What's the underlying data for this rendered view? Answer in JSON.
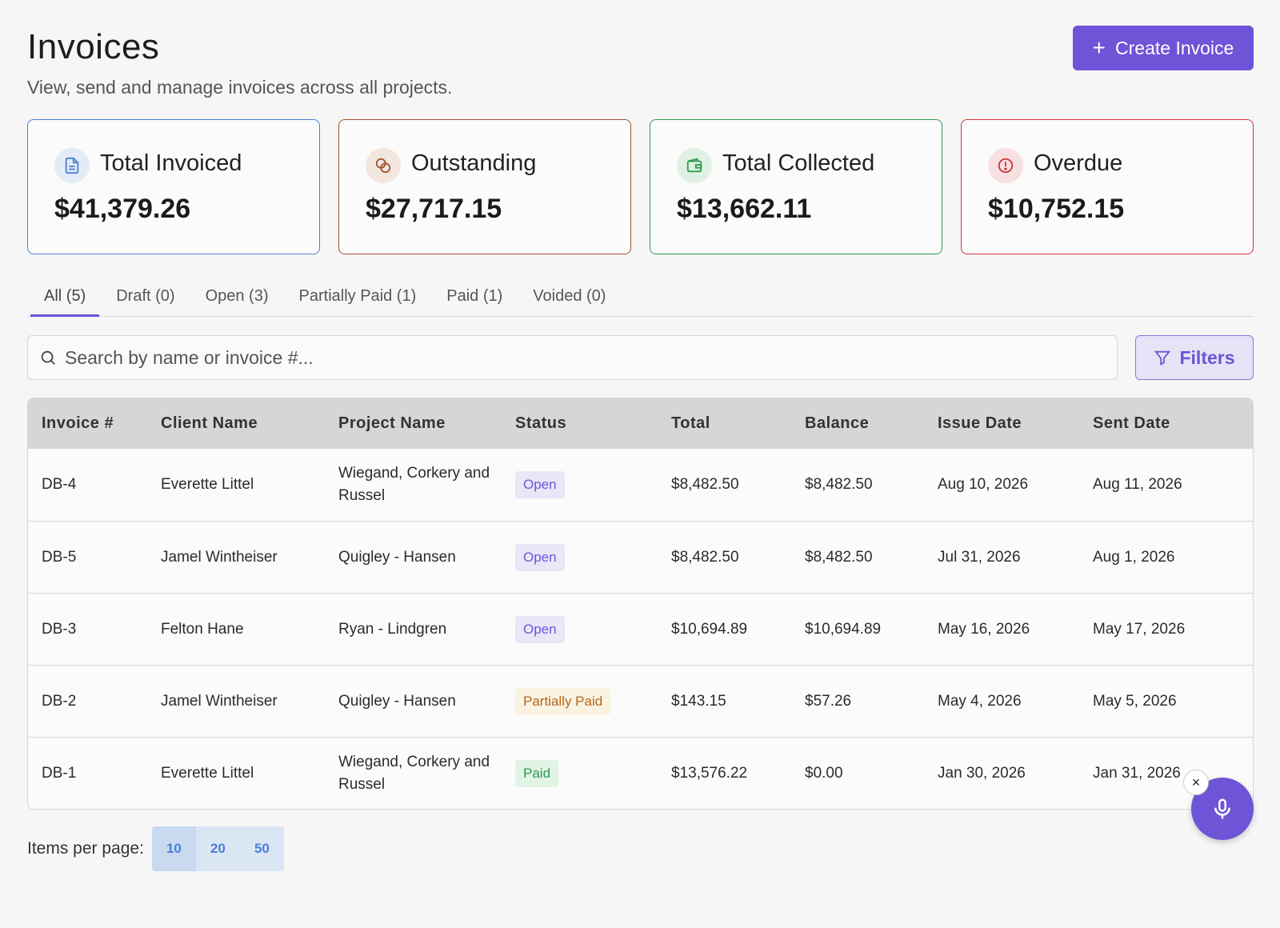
{
  "header": {
    "title": "Invoices",
    "subtitle": "View, send and manage invoices across all projects.",
    "create_label": "Create Invoice"
  },
  "cards": [
    {
      "label": "Total Invoiced",
      "value": "$41,379.26",
      "icon": "document-icon",
      "color": "#4a7fd0"
    },
    {
      "label": "Outstanding",
      "value": "$27,717.15",
      "icon": "coins-icon",
      "color": "#a0522d"
    },
    {
      "label": "Total Collected",
      "value": "$13,662.11",
      "icon": "wallet-icon",
      "color": "#2e9b4e"
    },
    {
      "label": "Overdue",
      "value": "$10,752.15",
      "icon": "alert-icon",
      "color": "#d0343a"
    }
  ],
  "tabs": [
    {
      "label": "All (5)",
      "active": true
    },
    {
      "label": "Draft (0)"
    },
    {
      "label": "Open (3)"
    },
    {
      "label": "Partially Paid (1)"
    },
    {
      "label": "Paid (1)"
    },
    {
      "label": "Voided (0)"
    }
  ],
  "search": {
    "placeholder": "Search by name or invoice #..."
  },
  "filters_label": "Filters",
  "table": {
    "columns": [
      "Invoice #",
      "Client Name",
      "Project Name",
      "Status",
      "Total",
      "Balance",
      "Issue Date",
      "Sent Date"
    ],
    "rows": [
      {
        "invoice": "DB-4",
        "client": "Everette Littel",
        "project": "Wiegand, Corkery and Russel",
        "status": "Open",
        "total": "$8,482.50",
        "balance": "$8,482.50",
        "issue": "Aug 10, 2026",
        "sent": "Aug 11, 2026"
      },
      {
        "invoice": "DB-5",
        "client": "Jamel Wintheiser",
        "project": "Quigley - Hansen",
        "status": "Open",
        "total": "$8,482.50",
        "balance": "$8,482.50",
        "issue": "Jul 31, 2026",
        "sent": "Aug 1, 2026"
      },
      {
        "invoice": "DB-3",
        "client": "Felton Hane",
        "project": "Ryan - Lindgren",
        "status": "Open",
        "total": "$10,694.89",
        "balance": "$10,694.89",
        "issue": "May 16, 2026",
        "sent": "May 17, 2026"
      },
      {
        "invoice": "DB-2",
        "client": "Jamel Wintheiser",
        "project": "Quigley - Hansen",
        "status": "Partially Paid",
        "total": "$143.15",
        "balance": "$57.26",
        "issue": "May 4, 2026",
        "sent": "May 5, 2026"
      },
      {
        "invoice": "DB-1",
        "client": "Everette Littel",
        "project": "Wiegand, Corkery and Russel",
        "status": "Paid",
        "total": "$13,576.22",
        "balance": "$0.00",
        "issue": "Jan 30, 2026",
        "sent": "Jan 31, 2026"
      }
    ]
  },
  "pagination": {
    "label": "Items per page:",
    "options": [
      "10",
      "20",
      "50"
    ],
    "selected": "10"
  },
  "accent": "#6e54d6"
}
